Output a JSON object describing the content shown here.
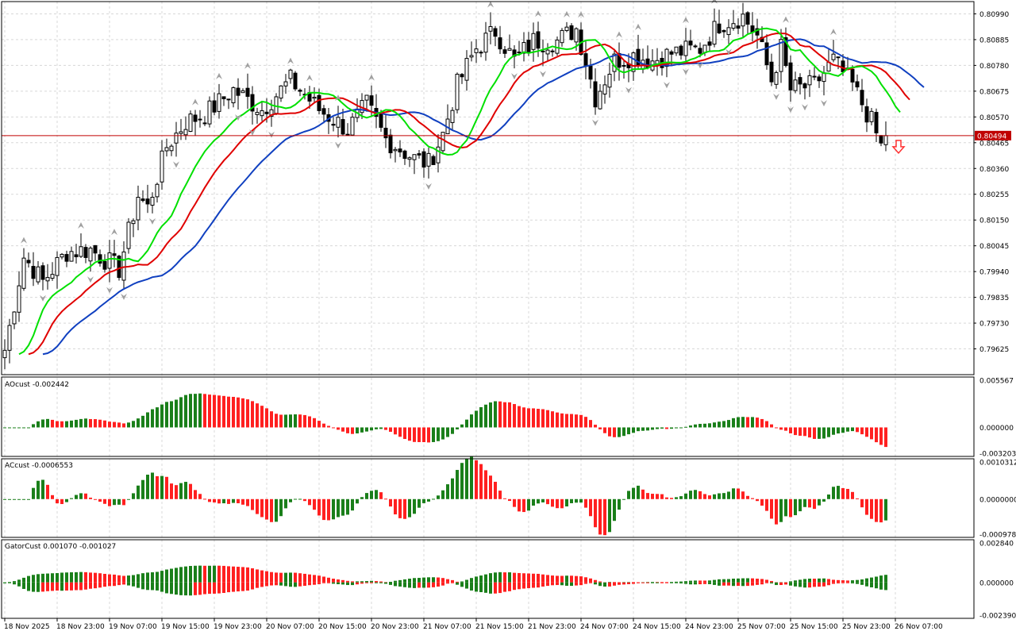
{
  "colors": {
    "background": "#ffffff",
    "grid": "#d8d8d8",
    "frame": "#000000",
    "bull_candle_fill": "#ffffff",
    "bear_candle_fill": "#000000",
    "alligator_lips": "#00e000",
    "alligator_teeth": "#e00000",
    "alligator_jaw": "#1040c0",
    "histogram_up": "#1a7f1a",
    "histogram_down": "#ff2020",
    "price_line": "#c00000",
    "price_label_bg": "#c00000",
    "price_label_text": "#ffffff",
    "fractal_marker": "#a0a0a0",
    "signal_arrow": "#ff3030"
  },
  "price_panel": {
    "price_axis_labels": [
      "0.80990",
      "0.80885",
      "0.80780",
      "0.80675",
      "0.80570",
      "0.80465",
      "0.80360",
      "0.80255",
      "0.80150",
      "0.80045",
      "0.79940",
      "0.79835",
      "0.79730",
      "0.79625"
    ],
    "current_price": "0.80494",
    "signal_icon": "down-arrow-icon",
    "fractal_icon": "fractal-arrow-icon"
  },
  "ao_panel": {
    "title": "AOcust -0.002442",
    "axis_labels": [
      "0.005567",
      "0.000000",
      "-0.003203"
    ]
  },
  "ac_panel": {
    "title": "ACcust -0.0006553",
    "axis_labels": [
      "0.0010312",
      "0.0000000",
      "-0.0009787"
    ]
  },
  "gator_panel": {
    "title": "GatorCust 0.001070 -0.001027",
    "axis_labels": [
      "0.002840",
      "0.000000",
      "-0.002390"
    ]
  },
  "time_axis_labels": [
    "18 Nov 2025",
    "18 Nov 23:00",
    "19 Nov 07:00",
    "19 Nov 15:00",
    "19 Nov 23:00",
    "20 Nov 07:00",
    "20 Nov 15:00",
    "20 Nov 23:00",
    "21 Nov 07:00",
    "21 Nov 15:00",
    "21 Nov 23:00",
    "24 Nov 07:00",
    "24 Nov 15:00",
    "24 Nov 23:00",
    "25 Nov 07:00",
    "25 Nov 15:00",
    "25 Nov 23:00",
    "26 Nov 07:00"
  ],
  "chart_data": {
    "type": "candlestick",
    "timeframe_note": "1-hour bars, 18 Nov 2025 to 26 Nov 2025",
    "price_axis_range": [
      0.7952,
      0.8104
    ],
    "ohlc_sample": [
      {
        "time": "18 Nov 2025",
        "open": 0.7963,
        "high": 0.7966,
        "low": 0.796,
        "close": 0.7965
      },
      {
        "time": "18 Nov 23:00",
        "open": 0.8003,
        "high": 0.8008,
        "low": 0.8,
        "close": 0.8005
      },
      {
        "time": "19 Nov 07:00",
        "open": 0.7995,
        "high": 0.7998,
        "low": 0.799,
        "close": 0.7996
      },
      {
        "time": "19 Nov 15:00",
        "open": 0.8045,
        "high": 0.8055,
        "low": 0.8042,
        "close": 0.8052
      },
      {
        "time": "19 Nov 23:00",
        "open": 0.8067,
        "high": 0.8075,
        "low": 0.8062,
        "close": 0.8068
      },
      {
        "time": "20 Nov 07:00",
        "open": 0.8057,
        "high": 0.8068,
        "low": 0.8053,
        "close": 0.8062
      },
      {
        "time": "20 Nov 15:00",
        "open": 0.8055,
        "high": 0.8062,
        "low": 0.8046,
        "close": 0.805
      },
      {
        "time": "20 Nov 23:00",
        "open": 0.8045,
        "high": 0.8049,
        "low": 0.804,
        "close": 0.8042
      },
      {
        "time": "21 Nov 07:00",
        "open": 0.804,
        "high": 0.8052,
        "low": 0.8032,
        "close": 0.805
      },
      {
        "time": "21 Nov 15:00",
        "open": 0.8088,
        "high": 0.8098,
        "low": 0.808,
        "close": 0.8086
      },
      {
        "time": "21 Nov 23:00",
        "open": 0.8085,
        "high": 0.8089,
        "low": 0.8082,
        "close": 0.8086
      },
      {
        "time": "24 Nov 07:00",
        "open": 0.8078,
        "high": 0.8083,
        "low": 0.8062,
        "close": 0.8066
      },
      {
        "time": "24 Nov 15:00",
        "open": 0.8077,
        "high": 0.8085,
        "low": 0.8074,
        "close": 0.808
      },
      {
        "time": "24 Nov 23:00",
        "open": 0.8083,
        "high": 0.8087,
        "low": 0.808,
        "close": 0.8085
      },
      {
        "time": "25 Nov 07:00",
        "open": 0.8097,
        "high": 0.8102,
        "low": 0.8094,
        "close": 0.81
      },
      {
        "time": "25 Nov 15:00",
        "open": 0.8088,
        "high": 0.8093,
        "low": 0.8065,
        "close": 0.8068
      },
      {
        "time": "25 Nov 23:00",
        "open": 0.8075,
        "high": 0.8081,
        "low": 0.807,
        "close": 0.8078
      },
      {
        "time": "26 Nov 07:00",
        "open": 0.8047,
        "high": 0.8052,
        "low": 0.8043,
        "close": 0.8049
      }
    ],
    "alligator": {
      "series": [
        {
          "legend_color": "#00e000",
          "description": "lips (green)"
        },
        {
          "legend_color": "#e00000",
          "description": "teeth (red)"
        },
        {
          "legend_color": "#1040c0",
          "description": "jaw (blue)"
        }
      ]
    },
    "indicator_panels": [
      {
        "name": "AOcust",
        "ylim": [
          -0.003203,
          0.005567
        ],
        "type": "histogram"
      },
      {
        "name": "ACcust",
        "ylim": [
          -0.0009787,
          0.0010312
        ],
        "type": "histogram"
      },
      {
        "name": "GatorCust",
        "ylim": [
          -0.00239,
          0.00284
        ],
        "type": "histogram"
      }
    ],
    "grid": true
  }
}
